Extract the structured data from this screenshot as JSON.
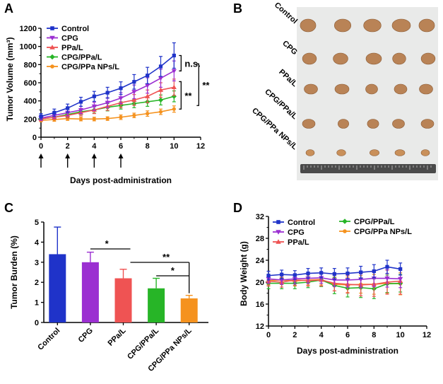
{
  "colors": {
    "control": "#1f33c9",
    "cpg": "#9b2fd1",
    "ppal": "#ef5353",
    "cpgppal": "#27b527",
    "nps": "#f5921e"
  },
  "panels": {
    "a": "A",
    "b": "B",
    "c": "C",
    "d": "D"
  },
  "photo": {
    "labels": [
      "Control",
      "CPG",
      "PPa/L",
      "CPG/PPa/L",
      "CPG/PPa NPs/L"
    ],
    "ruler_label": "ruler"
  },
  "chart_data": [
    {
      "id": "A",
      "type": "line",
      "xlabel": "Days post-administration",
      "ylabel": "Tumor Volume (mm³)",
      "xlim": [
        0,
        12
      ],
      "ylim": [
        0,
        1200
      ],
      "xticks": [
        0,
        2,
        4,
        6,
        8,
        10,
        12
      ],
      "yticks": [
        0,
        200,
        400,
        600,
        800,
        1000,
        1200
      ],
      "x": [
        0,
        1,
        2,
        3,
        4,
        5,
        6,
        7,
        8,
        9,
        10
      ],
      "dosing_days": [
        0,
        2,
        4,
        6
      ],
      "series": [
        {
          "name": "Control",
          "color_key": "control",
          "marker": "square",
          "values": [
            230,
            270,
            320,
            390,
            450,
            490,
            540,
            610,
            680,
            780,
            900
          ],
          "errors": [
            30,
            40,
            45,
            50,
            55,
            60,
            70,
            80,
            90,
            110,
            140
          ]
        },
        {
          "name": "CPG",
          "color_key": "cpg",
          "marker": "triangle-down",
          "values": [
            210,
            240,
            270,
            300,
            340,
            380,
            430,
            500,
            570,
            650,
            730
          ],
          "errors": [
            25,
            30,
            35,
            40,
            45,
            55,
            60,
            75,
            85,
            100,
            110
          ]
        },
        {
          "name": "PPa/L",
          "color_key": "ppal",
          "marker": "triangle-up",
          "values": [
            200,
            220,
            240,
            270,
            300,
            340,
            380,
            410,
            450,
            520,
            550
          ],
          "errors": [
            20,
            25,
            30,
            35,
            40,
            45,
            55,
            60,
            70,
            80,
            90
          ]
        },
        {
          "name": "CPG/PPa/L",
          "color_key": "cpgppal",
          "marker": "diamond",
          "values": [
            200,
            220,
            250,
            280,
            300,
            330,
            350,
            370,
            390,
            410,
            450
          ],
          "errors": [
            20,
            25,
            30,
            30,
            35,
            40,
            40,
            45,
            50,
            55,
            60
          ]
        },
        {
          "name": "CPG/PPa NPs/L",
          "color_key": "nps",
          "marker": "circle",
          "values": [
            185,
            195,
            205,
            200,
            200,
            205,
            220,
            240,
            260,
            280,
            310
          ],
          "errors": [
            15,
            20,
            20,
            20,
            20,
            20,
            25,
            25,
            30,
            30,
            35
          ]
        }
      ],
      "annotations": [
        {
          "text": "n.s.",
          "between": [
            "Control",
            "CPG"
          ]
        },
        {
          "text": "**",
          "between": [
            "CPG/PPa/L",
            "CPG/PPa NPs/L"
          ]
        },
        {
          "text": "**",
          "between": [
            "Control",
            "CPG/PPa NPs/L"
          ]
        }
      ],
      "legend": "top-left"
    },
    {
      "id": "C",
      "type": "bar",
      "ylabel": "Tumor Burden (%)",
      "ylim": [
        0,
        5
      ],
      "yticks": [
        0,
        1,
        2,
        3,
        4,
        5
      ],
      "categories": [
        "Control",
        "CPG",
        "PPa/L",
        "CPG/PPa/L",
        "CPG/PPa NPs/L"
      ],
      "color_keys": [
        "control",
        "cpg",
        "ppal",
        "cpgppal",
        "nps"
      ],
      "values": [
        3.4,
        3.0,
        2.2,
        1.7,
        1.2
      ],
      "errors": [
        1.35,
        0.5,
        0.45,
        0.5,
        0.15
      ],
      "annotations": [
        {
          "text": "*",
          "between": [
            "CPG",
            "PPa/L"
          ]
        },
        {
          "text": "**",
          "between": [
            "PPa/L",
            "CPG/PPa NPs/L"
          ]
        },
        {
          "text": "*",
          "between": [
            "CPG/PPa/L",
            "CPG/PPa NPs/L"
          ]
        }
      ]
    },
    {
      "id": "D",
      "type": "line",
      "xlabel": "Days post-administration",
      "ylabel": "Body Weight (g)",
      "xlim": [
        0,
        12
      ],
      "ylim": [
        12,
        32
      ],
      "xticks": [
        0,
        2,
        4,
        6,
        8,
        10,
        12
      ],
      "yticks": [
        12,
        16,
        20,
        24,
        28,
        32
      ],
      "x": [
        0,
        1,
        2,
        3,
        4,
        5,
        6,
        7,
        8,
        9,
        10
      ],
      "series": [
        {
          "name": "Control",
          "color_key": "control",
          "marker": "square",
          "values": [
            21.2,
            21.4,
            21.3,
            21.6,
            21.7,
            21.5,
            21.6,
            21.8,
            22.0,
            22.8,
            22.4
          ],
          "errors": [
            0.8,
            0.8,
            0.8,
            0.9,
            0.9,
            1.0,
            1.0,
            1.1,
            1.2,
            1.2,
            1.1
          ]
        },
        {
          "name": "CPG",
          "color_key": "cpg",
          "marker": "triangle-down",
          "values": [
            20.6,
            20.4,
            20.6,
            20.7,
            20.8,
            20.4,
            20.4,
            20.5,
            20.7,
            20.7,
            20.6
          ],
          "errors": [
            0.8,
            0.8,
            0.9,
            0.9,
            1.0,
            1.2,
            1.3,
            1.5,
            1.5,
            1.6,
            1.6
          ]
        },
        {
          "name": "PPa/L",
          "color_key": "ppal",
          "marker": "triangle-up",
          "values": [
            20.2,
            20.0,
            20.4,
            20.3,
            20.4,
            19.8,
            19.6,
            19.5,
            19.6,
            20.0,
            20.2
          ],
          "errors": [
            0.9,
            0.9,
            1.0,
            1.0,
            1.1,
            1.4,
            1.6,
            2.0,
            2.2,
            2.2,
            2.4
          ]
        },
        {
          "name": "CPG/PPa/L",
          "color_key": "cpgppal",
          "marker": "diamond",
          "values": [
            19.8,
            19.8,
            19.8,
            20.0,
            20.4,
            19.4,
            18.9,
            19.0,
            18.8,
            19.7,
            19.8
          ],
          "errors": [
            1.0,
            1.0,
            1.0,
            1.0,
            1.2,
            1.5,
            1.6,
            1.8,
            1.8,
            1.6,
            1.6
          ]
        },
        {
          "name": "CPG/PPa NPs/L",
          "color_key": "nps",
          "marker": "circle",
          "values": [
            20.3,
            20.4,
            20.2,
            20.4,
            20.5,
            19.6,
            19.5,
            19.6,
            19.6,
            19.8,
            19.7
          ],
          "errors": [
            0.8,
            0.8,
            0.9,
            0.9,
            1.0,
            1.2,
            1.4,
            1.6,
            1.8,
            1.8,
            2.0
          ]
        }
      ],
      "legend": "top"
    }
  ]
}
